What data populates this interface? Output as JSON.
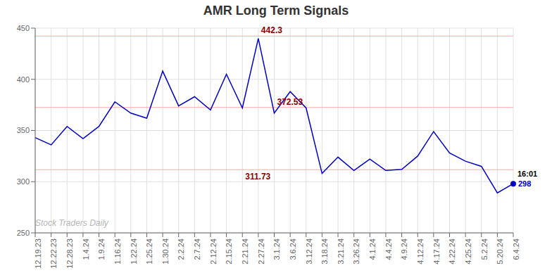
{
  "chart_data": {
    "type": "line",
    "title": "AMR Long Term Signals",
    "categories": [
      "12.19.23",
      "12.22.23",
      "12.28.23",
      "1.4.24",
      "1.9.24",
      "1.16.24",
      "1.22.24",
      "1.25.24",
      "1.30.24",
      "2.2.24",
      "2.7.24",
      "2.12.24",
      "2.15.24",
      "2.21.24",
      "2.27.24",
      "3.1.24",
      "3.6.24",
      "3.12.24",
      "3.18.24",
      "3.21.24",
      "3.26.24",
      "4.1.24",
      "4.4.24",
      "4.9.24",
      "4.12.24",
      "4.17.24",
      "4.22.24",
      "4.25.24",
      "5.2.24",
      "5.20.24",
      "6.4.24"
    ],
    "values": [
      343,
      336,
      354,
      342,
      354,
      378,
      367,
      362,
      408,
      374,
      383,
      370,
      405,
      372,
      440,
      367,
      388,
      372,
      308,
      324,
      311,
      322,
      311,
      312,
      325,
      349,
      328,
      320,
      315,
      289,
      298
    ],
    "color": "#0000cc",
    "ylim": [
      250,
      450
    ],
    "yticks": [
      250,
      300,
      350,
      400,
      450
    ],
    "grid": true,
    "hlines": [
      {
        "value": 442.3,
        "color": "#ffaaaa"
      },
      {
        "value": 372.53,
        "color": "#ffaaaa"
      },
      {
        "value": 311.73,
        "color": "#ffaaaa"
      }
    ],
    "annotations": [
      {
        "text": "442.3",
        "x": "2.27.24",
        "y": 442.3,
        "color": "#8b0000"
      },
      {
        "text": "372.53",
        "x": "3.1.24",
        "y": 372.53,
        "color": "#8b0000"
      },
      {
        "text": "311.73",
        "x": "2.21.24",
        "y": 311.73,
        "color": "#8b0000"
      },
      {
        "text": "Stock Traders Daily",
        "color": "#aaaaaa"
      }
    ],
    "end_point": {
      "x": "6.4.24",
      "y": 298,
      "color": "#0000cc",
      "time": "16:01",
      "price": "298"
    }
  }
}
